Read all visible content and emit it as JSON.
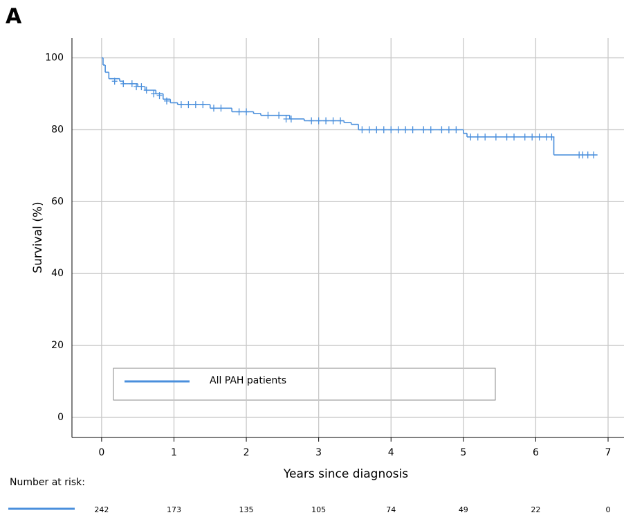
{
  "panel_label": "A",
  "chart_data": {
    "type": "km",
    "color": "#4a8fdc",
    "x_label": "Years since diagnosis",
    "y_label": "Survival (%)",
    "xlim": [
      -0.41,
      7.22
    ],
    "ylim": [
      -5.6,
      105.5
    ],
    "xticks": [
      0,
      1,
      2,
      3,
      4,
      5,
      6,
      7
    ],
    "yticks": [
      0,
      20,
      40,
      60,
      80,
      100
    ],
    "grid": true,
    "series": [
      {
        "name": "All PAH patients",
        "x": [
          0,
          0.02,
          0.05,
          0.1,
          0.25,
          0.3,
          0.5,
          0.6,
          0.75,
          0.85,
          0.95,
          1.05,
          1.5,
          1.8,
          2.1,
          2.2,
          2.6,
          2.8,
          3.35,
          3.45,
          3.55,
          5.0,
          5.05,
          6.25,
          6.85
        ],
        "values": [
          100,
          98,
          96,
          94.2,
          93.5,
          92.8,
          92,
          91,
          90,
          88.5,
          87.5,
          87,
          86,
          85,
          84.5,
          84,
          83,
          82.5,
          82,
          81.5,
          80,
          79,
          78,
          73,
          73
        ]
      }
    ],
    "censored": {
      "x": [
        0.18,
        0.3,
        0.42,
        0.48,
        0.55,
        0.62,
        0.72,
        0.8,
        0.9,
        1.1,
        1.2,
        1.3,
        1.4,
        1.55,
        1.65,
        1.9,
        2.0,
        2.3,
        2.45,
        2.55,
        2.62,
        2.9,
        3.0,
        3.1,
        3.2,
        3.3,
        3.6,
        3.7,
        3.8,
        3.9,
        4.0,
        4.1,
        4.2,
        4.3,
        4.45,
        4.55,
        4.7,
        4.8,
        4.9,
        5.1,
        5.2,
        5.3,
        5.45,
        5.6,
        5.7,
        5.85,
        5.95,
        6.05,
        6.15,
        6.22,
        6.6,
        6.65,
        6.72,
        6.8
      ],
      "values": [
        93.5,
        92.8,
        92.8,
        92,
        92,
        91,
        90,
        89.5,
        88,
        87,
        87,
        87,
        87,
        86,
        86,
        85,
        85,
        84,
        84,
        83,
        83,
        82.5,
        82.5,
        82.5,
        82.5,
        82.5,
        80,
        80,
        80,
        80,
        80,
        80,
        80,
        80,
        80,
        80,
        80,
        80,
        80,
        78,
        78,
        78,
        78,
        78,
        78,
        78,
        78,
        78,
        78,
        78,
        73,
        73,
        73,
        73
      ]
    },
    "risk_table": {
      "title": "Number at risk:",
      "values": [
        242,
        173,
        135,
        105,
        74,
        49,
        22,
        0
      ]
    }
  }
}
